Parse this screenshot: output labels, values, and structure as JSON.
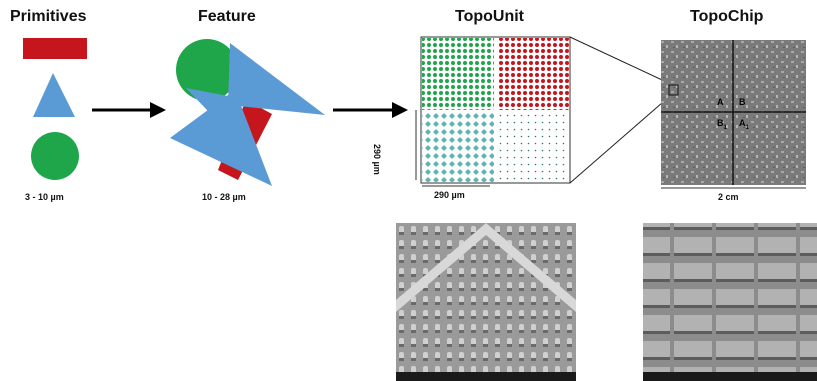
{
  "titles": {
    "primitives": "Primitives",
    "feature": "Feature",
    "topounit": "TopoUnit",
    "topochip": "TopoChip"
  },
  "scales": {
    "primitive_size": "3 - 10 µm",
    "feature_size": "10 - 28 µm",
    "unit_width": "290 µm",
    "unit_height": "290 µm",
    "chip_width": "2 cm"
  },
  "chip_quadrants": {
    "a": "A",
    "b": "B",
    "b1": "B",
    "b1_sub": "1",
    "a1": "A",
    "a1_sub": "1"
  },
  "colors": {
    "red": "#c4161c",
    "blue": "#5b9bd5",
    "green": "#1fa64a",
    "teal": "#5fb6b1",
    "arrow": "#000000",
    "sem_gray": "#8a8a8a"
  }
}
